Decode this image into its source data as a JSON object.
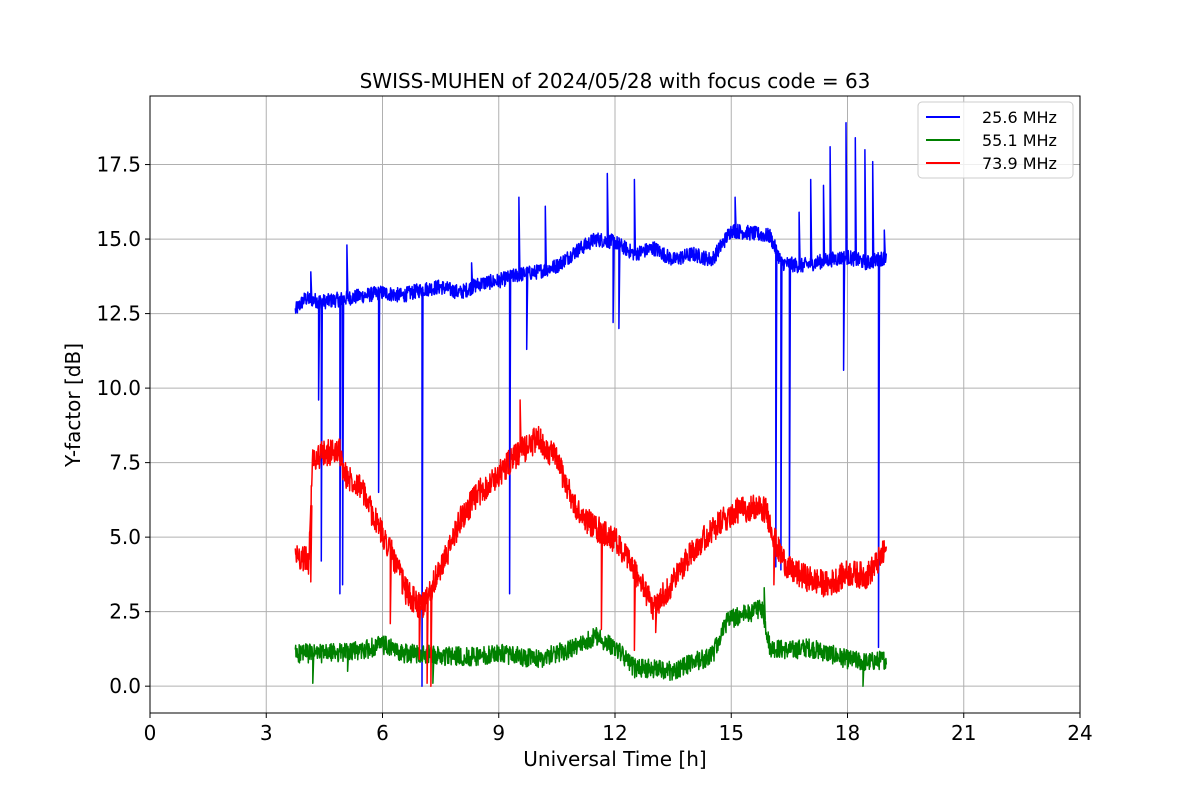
{
  "chart_data": {
    "type": "line",
    "title": "SWISS-MUHEN of 2024/05/28 with focus code = 63",
    "xlabel": "Universal Time [h]",
    "ylabel": "Y-factor [dB]",
    "xlim": [
      0,
      24
    ],
    "ylim": [
      -0.9,
      19.8
    ],
    "xticks": [
      0,
      3,
      6,
      9,
      12,
      15,
      18,
      21,
      24
    ],
    "xtick_labels": [
      "0",
      "3",
      "6",
      "9",
      "12",
      "15",
      "18",
      "21",
      "24"
    ],
    "yticks": [
      0.0,
      2.5,
      5.0,
      7.5,
      10.0,
      12.5,
      15.0,
      17.5
    ],
    "ytick_labels": [
      "0.0",
      "2.5",
      "5.0",
      "7.5",
      "10.0",
      "12.5",
      "15.0",
      "17.5"
    ],
    "grid": true,
    "legend_position": "top-right",
    "series": [
      {
        "name": "25.6 MHz",
        "color": "#0000ff",
        "noise": 0.25,
        "x": [
          3.75,
          4.0,
          4.5,
          5.0,
          5.5,
          6.0,
          6.5,
          7.0,
          7.5,
          8.0,
          8.5,
          9.0,
          9.5,
          10.0,
          10.5,
          11.0,
          11.5,
          12.0,
          12.5,
          13.0,
          13.5,
          14.0,
          14.5,
          15.0,
          15.5,
          16.0,
          16.3,
          16.8,
          17.5,
          18.0,
          18.5,
          19.0
        ],
        "y": [
          12.6,
          13.0,
          12.9,
          13.0,
          13.1,
          13.2,
          13.1,
          13.3,
          13.4,
          13.2,
          13.5,
          13.6,
          13.8,
          13.9,
          14.1,
          14.6,
          15.0,
          14.9,
          14.5,
          14.7,
          14.3,
          14.5,
          14.3,
          15.3,
          15.2,
          15.1,
          14.2,
          14.1,
          14.3,
          14.4,
          14.2,
          14.4
        ],
        "spikes": [
          {
            "x": 4.15,
            "y": 13.9
          },
          {
            "x": 4.35,
            "y": 9.6
          },
          {
            "x": 4.42,
            "y": 4.2
          },
          {
            "x": 4.9,
            "y": 3.1
          },
          {
            "x": 4.97,
            "y": 3.4
          },
          {
            "x": 5.08,
            "y": 14.8
          },
          {
            "x": 5.9,
            "y": 6.5
          },
          {
            "x": 7.02,
            "y": 0.0
          },
          {
            "x": 8.3,
            "y": 14.2
          },
          {
            "x": 9.28,
            "y": 3.1
          },
          {
            "x": 9.52,
            "y": 16.4
          },
          {
            "x": 9.72,
            "y": 11.3
          },
          {
            "x": 10.2,
            "y": 16.1
          },
          {
            "x": 11.8,
            "y": 17.2
          },
          {
            "x": 11.95,
            "y": 12.2
          },
          {
            "x": 12.1,
            "y": 12.0
          },
          {
            "x": 12.5,
            "y": 17.0
          },
          {
            "x": 15.1,
            "y": 16.4
          },
          {
            "x": 16.15,
            "y": 4.0
          },
          {
            "x": 16.28,
            "y": 3.9
          },
          {
            "x": 16.5,
            "y": 4.1
          },
          {
            "x": 16.75,
            "y": 15.9
          },
          {
            "x": 17.05,
            "y": 17.0
          },
          {
            "x": 17.38,
            "y": 16.8
          },
          {
            "x": 17.55,
            "y": 18.1
          },
          {
            "x": 17.9,
            "y": 10.6
          },
          {
            "x": 17.96,
            "y": 18.9
          },
          {
            "x": 18.2,
            "y": 18.4
          },
          {
            "x": 18.45,
            "y": 18.0
          },
          {
            "x": 18.65,
            "y": 17.6
          },
          {
            "x": 18.8,
            "y": 1.3
          },
          {
            "x": 18.95,
            "y": 15.3
          }
        ]
      },
      {
        "name": "55.1 MHz",
        "color": "#008000",
        "noise": 0.32,
        "x": [
          3.75,
          4.5,
          5.5,
          6.0,
          6.5,
          7.0,
          7.5,
          8.0,
          8.5,
          9.0,
          9.5,
          10.0,
          10.5,
          11.0,
          11.5,
          12.0,
          12.5,
          13.0,
          13.5,
          14.0,
          14.5,
          14.9,
          15.3,
          15.8,
          16.0,
          16.5,
          17.0,
          17.5,
          18.0,
          18.5,
          19.0
        ],
        "y": [
          1.1,
          1.1,
          1.2,
          1.4,
          1.1,
          1.1,
          1.0,
          1.0,
          1.0,
          1.1,
          1.0,
          0.9,
          1.1,
          1.3,
          1.7,
          1.3,
          0.6,
          0.6,
          0.5,
          0.8,
          1.0,
          2.2,
          2.4,
          2.6,
          1.3,
          1.2,
          1.3,
          1.1,
          0.9,
          0.8,
          0.9
        ],
        "spikes": [
          {
            "x": 4.2,
            "y": 0.1
          },
          {
            "x": 5.1,
            "y": 0.5
          },
          {
            "x": 7.3,
            "y": 0.1
          },
          {
            "x": 15.85,
            "y": 3.3
          },
          {
            "x": 18.4,
            "y": 0.0
          }
        ]
      },
      {
        "name": "73.9 MHz",
        "color": "#ff0000",
        "noise": 0.45,
        "x": [
          3.75,
          4.1,
          4.2,
          4.5,
          4.9,
          5.0,
          5.4,
          5.8,
          6.2,
          6.6,
          7.0,
          7.3,
          7.7,
          8.0,
          8.5,
          9.0,
          9.5,
          10.0,
          10.5,
          11.0,
          11.5,
          12.0,
          12.5,
          13.0,
          13.5,
          14.0,
          14.5,
          15.0,
          15.5,
          15.9,
          16.2,
          16.5,
          17.0,
          17.5,
          18.0,
          18.5,
          18.8,
          19.0
        ],
        "y": [
          4.4,
          4.2,
          7.6,
          7.8,
          7.9,
          7.1,
          6.8,
          5.6,
          4.6,
          3.2,
          2.6,
          3.4,
          4.5,
          5.6,
          6.5,
          7.1,
          7.8,
          8.3,
          7.6,
          5.9,
          5.3,
          4.9,
          3.9,
          2.6,
          3.5,
          4.6,
          5.2,
          5.8,
          6.0,
          5.9,
          4.6,
          3.9,
          3.6,
          3.4,
          3.8,
          3.7,
          4.2,
          4.6
        ],
        "spikes": [
          {
            "x": 4.15,
            "y": 3.5
          },
          {
            "x": 6.2,
            "y": 2.1
          },
          {
            "x": 6.95,
            "y": 0.9
          },
          {
            "x": 7.15,
            "y": 0.1
          },
          {
            "x": 7.25,
            "y": 0.0
          },
          {
            "x": 9.55,
            "y": 9.6
          },
          {
            "x": 11.65,
            "y": 1.9
          },
          {
            "x": 12.5,
            "y": 1.2
          },
          {
            "x": 13.05,
            "y": 1.8
          },
          {
            "x": 16.1,
            "y": 3.4
          }
        ]
      }
    ]
  }
}
